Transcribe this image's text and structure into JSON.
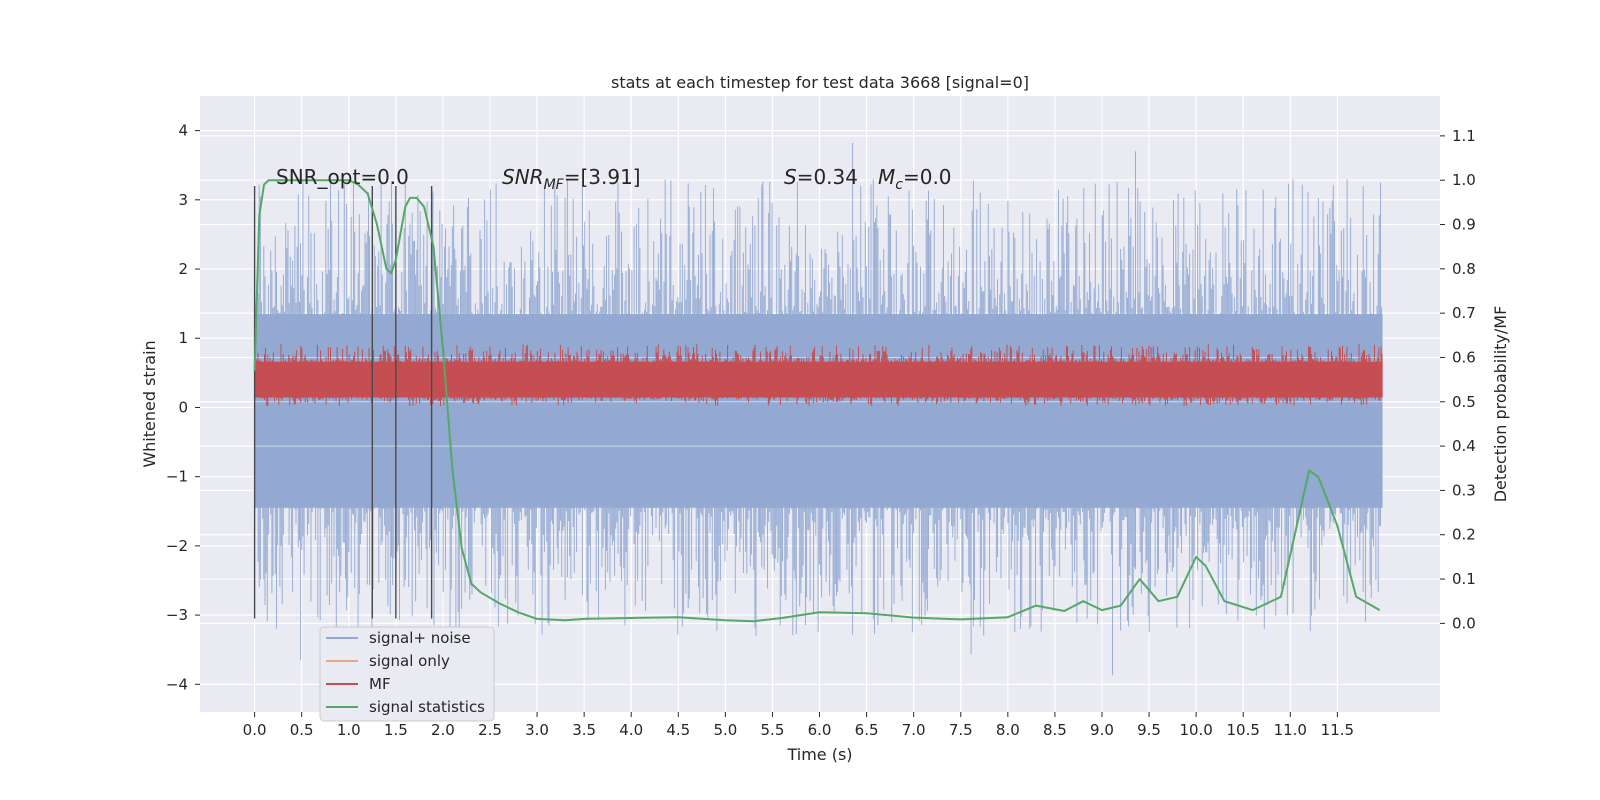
{
  "chart_data": {
    "type": "line",
    "title": "stats at each timestep for test data 3668 [signal=0]",
    "xlabel": "Time (s)",
    "ylabel_left": "Whitened strain",
    "ylabel_right": "Detection probability/MF",
    "xlim": [
      -0.58,
      12.59
    ],
    "ylim_left": [
      -4.4,
      4.5
    ],
    "ylim_right": [
      -0.2,
      1.19
    ],
    "grid": true,
    "legend_position": "lower-left",
    "x_ticks": [
      "0.0",
      "0.5",
      "1.0",
      "1.5",
      "2.0",
      "2.5",
      "3.0",
      "3.5",
      "4.0",
      "4.5",
      "5.0",
      "5.5",
      "6.0",
      "6.5",
      "7.0",
      "7.5",
      "8.0",
      "8.5",
      "9.0",
      "9.5",
      "10.0",
      "10.5",
      "11.0",
      "11.5"
    ],
    "y_ticks_left": [
      "−4",
      "−3",
      "−2",
      "−1",
      "0",
      "1",
      "2",
      "3",
      "4"
    ],
    "y_ticks_right": [
      "0.0",
      "0.1",
      "0.2",
      "0.3",
      "0.4",
      "0.5",
      "0.6",
      "0.7",
      "0.8",
      "0.9",
      "1.0",
      "1.1"
    ],
    "annotations": {
      "snr_opt": "SNR_opt=0.0",
      "snr_mf_base": "SNR",
      "snr_mf_sub": "MF",
      "snr_mf_value": "=[3.91]",
      "s_label": "S",
      "s_value": "=0.34",
      "mc_label": "M",
      "mc_sub": "c",
      "mc_value": "=0.0"
    },
    "vertical_markers_x": [
      0.0,
      1.25,
      1.5,
      1.88
    ],
    "marker_ylim": [
      -3.05,
      3.2
    ],
    "series": [
      {
        "name": "signal+ noise",
        "color": "#92a8d1",
        "axis": "left",
        "x_range": [
          0,
          11.98
        ],
        "band": [
          -1.45,
          1.35
        ],
        "peak_range": [
          -3.9,
          4.1
        ]
      },
      {
        "name": "signal only",
        "color": "#e8a58a",
        "axis": "left",
        "values": []
      },
      {
        "name": "MF",
        "color": "#c44e52",
        "axis": "right",
        "x_range": [
          0,
          11.98
        ],
        "band": [
          0.51,
          0.59
        ],
        "peak_range": [
          0.49,
          0.63
        ]
      },
      {
        "name": "signal statistics",
        "color": "#55a868",
        "axis": "right",
        "x": [
          0.0,
          0.05,
          0.1,
          0.15,
          0.2,
          0.3,
          0.5,
          0.8,
          1.0,
          1.1,
          1.2,
          1.3,
          1.4,
          1.45,
          1.5,
          1.55,
          1.6,
          1.65,
          1.72,
          1.8,
          1.9,
          2.0,
          2.1,
          2.2,
          2.3,
          2.4,
          2.6,
          2.8,
          3.0,
          3.3,
          3.5,
          4.0,
          4.5,
          5.0,
          5.3,
          5.6,
          6.0,
          6.5,
          7.0,
          7.5,
          8.0,
          8.3,
          8.6,
          8.8,
          9.0,
          9.2,
          9.4,
          9.6,
          9.8,
          10.0,
          10.1,
          10.3,
          10.6,
          10.9,
          11.1,
          11.2,
          11.3,
          11.5,
          11.7,
          11.95
        ],
        "values": [
          0.57,
          0.92,
          0.99,
          1.0,
          1.0,
          1.0,
          1.0,
          1.0,
          1.0,
          0.99,
          0.97,
          0.9,
          0.8,
          0.79,
          0.82,
          0.88,
          0.94,
          0.96,
          0.96,
          0.94,
          0.85,
          0.62,
          0.35,
          0.17,
          0.09,
          0.07,
          0.045,
          0.025,
          0.01,
          0.007,
          0.01,
          0.012,
          0.014,
          0.007,
          0.005,
          0.012,
          0.025,
          0.023,
          0.013,
          0.009,
          0.014,
          0.04,
          0.028,
          0.05,
          0.03,
          0.04,
          0.1,
          0.05,
          0.06,
          0.15,
          0.13,
          0.05,
          0.03,
          0.06,
          0.25,
          0.345,
          0.33,
          0.22,
          0.06,
          0.03
        ]
      }
    ]
  }
}
